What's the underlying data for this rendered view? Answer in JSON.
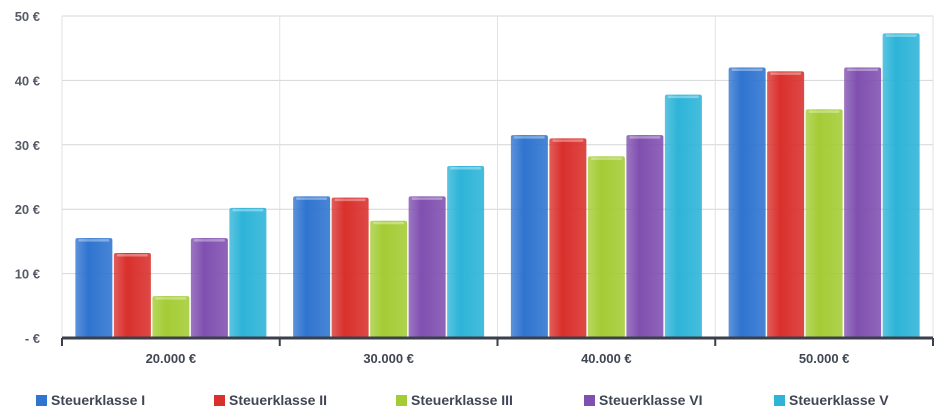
{
  "chart_data": {
    "type": "bar",
    "categories": [
      "20.000 €",
      "30.000 €",
      "40.000 €",
      "50.000 €"
    ],
    "series": [
      {
        "name": "Steuerklasse I",
        "color": "#2f74d0",
        "values": [
          15.5,
          22.0,
          31.5,
          42.0
        ]
      },
      {
        "name": "Steuerklasse II",
        "color": "#d9302c",
        "values": [
          13.2,
          21.8,
          31.0,
          41.4
        ]
      },
      {
        "name": "Steuerklasse III",
        "color": "#a4cc35",
        "values": [
          6.5,
          18.2,
          28.2,
          35.5
        ]
      },
      {
        "name": "Steuerklasse VI",
        "color": "#8050b0",
        "values": [
          15.5,
          22.0,
          31.5,
          42.0
        ]
      },
      {
        "name": "Steuerklasse V",
        "color": "#2db4d8",
        "values": [
          20.2,
          26.7,
          37.8,
          47.3
        ]
      }
    ],
    "yticks": [
      {
        "value": 0,
        "label": "-   €"
      },
      {
        "value": 10,
        "label": "10 €"
      },
      {
        "value": 20,
        "label": "20 €"
      },
      {
        "value": 30,
        "label": "30 €"
      },
      {
        "value": 40,
        "label": "40 €"
      },
      {
        "value": 50,
        "label": "50 €"
      }
    ],
    "ylim": [
      0,
      50
    ],
    "title": "",
    "xlabel": "",
    "ylabel": "",
    "grid": true,
    "legend_position": "bottom"
  }
}
